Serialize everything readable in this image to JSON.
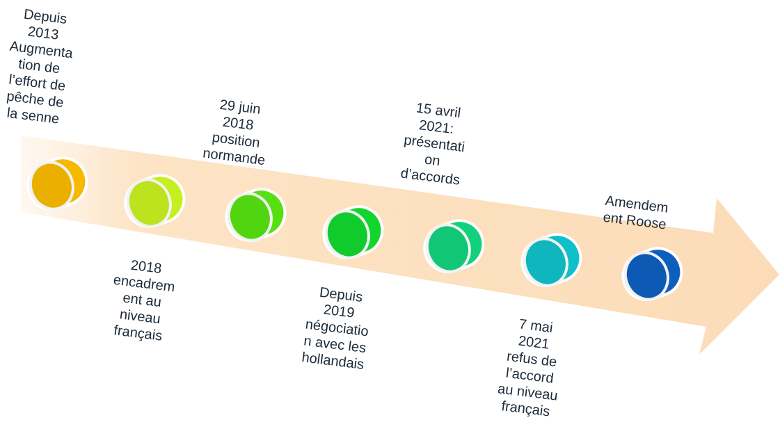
{
  "events": [
    {
      "lines": [
        "Depuis",
        "2013",
        "Augmenta",
        "tion de",
        "l’effort de",
        "pêche de",
        "la senne"
      ]
    },
    {
      "lines": [
        "2018",
        "encadrem",
        "ent au",
        "niveau",
        "français"
      ]
    },
    {
      "lines": [
        "29 juin",
        "2018",
        "position",
        "normande"
      ]
    },
    {
      "lines": [
        "Depuis",
        "2019",
        "négociatio",
        "n avec les",
        "hollandais"
      ]
    },
    {
      "lines": [
        "15 avril",
        "2021:",
        "présentati",
        "on",
        "d’accords"
      ]
    },
    {
      "lines": [
        "7 mai",
        "2021",
        "refus de",
        "l’accord",
        "au niveau",
        "français"
      ]
    },
    {
      "lines": [
        "Amendem",
        "ent Roose"
      ]
    }
  ]
}
